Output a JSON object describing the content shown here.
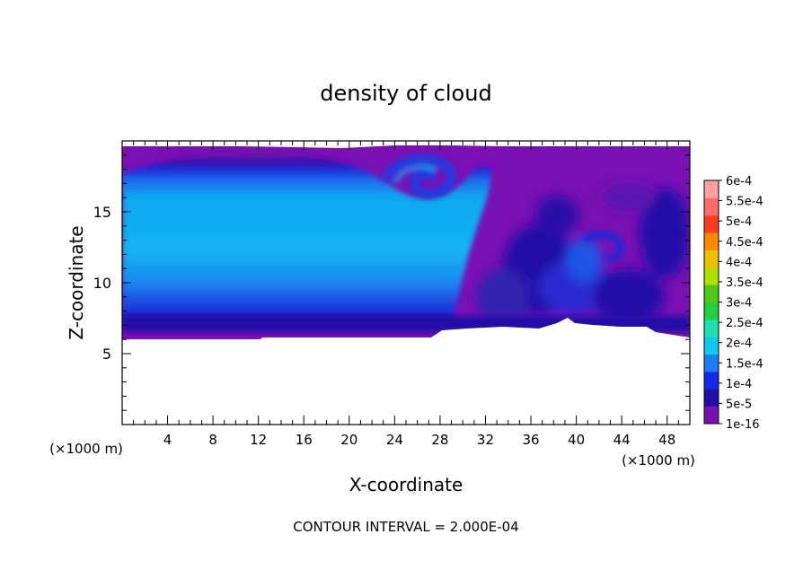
{
  "chart_data": {
    "type": "heatmap",
    "title": "density of cloud",
    "xlabel": "X-coordinate",
    "ylabel": "Z-coordinate",
    "x_unit_label": "(×1000 m)",
    "y_unit_label": "(×1000 m)",
    "footer": "CONTOUR INTERVAL = 2.000E-04",
    "xlim": [
      0,
      50
    ],
    "ylim": [
      0,
      20
    ],
    "x_ticks": [
      4,
      8,
      12,
      16,
      20,
      24,
      28,
      32,
      36,
      40,
      44,
      48
    ],
    "x_tick_labels": [
      "4",
      "8",
      "12",
      "16",
      "20",
      "24",
      "28",
      "32",
      "36",
      "40",
      "44",
      "48"
    ],
    "y_ticks": [
      5,
      10,
      15
    ],
    "y_tick_labels": [
      "5",
      "10",
      "15"
    ],
    "cloud_layer_base_km": 6.2,
    "cloud_layer_top_km": 19.4,
    "colorbar": {
      "levels": [
        "1e-16",
        "5e-5",
        "1e-4",
        "1.5e-4",
        "2e-4",
        "2.5e-4",
        "3e-4",
        "3.5e-4",
        "4e-4",
        "4.5e-4",
        "5e-4",
        "5.5e-4",
        "6e-4"
      ],
      "colors": [
        "#7a10b4",
        "#2010a8",
        "#1428e8",
        "#1f7cf2",
        "#10c8f0",
        "#20e0b0",
        "#20d040",
        "#50c818",
        "#b0e000",
        "#f0c000",
        "#ff8800",
        "#ff3c1c",
        "#ff6a6a",
        "#ffa0a0"
      ]
    }
  }
}
